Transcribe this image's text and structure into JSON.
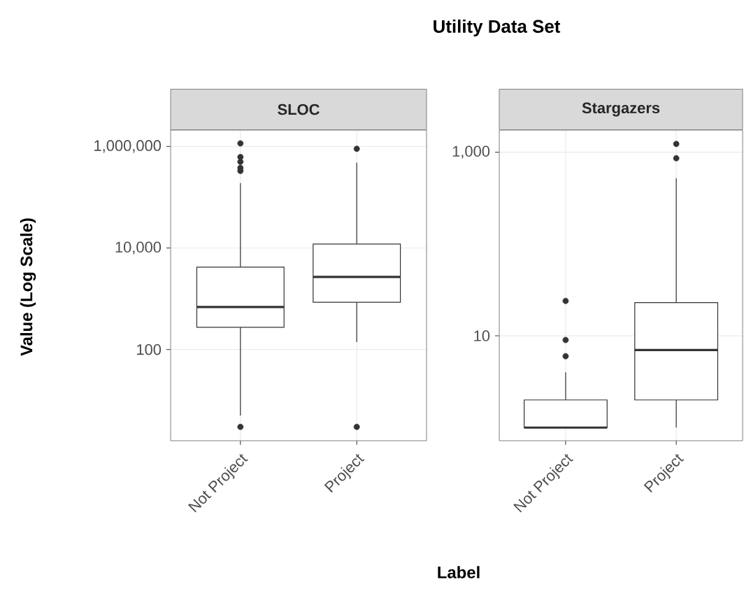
{
  "chart_data": [
    {
      "type": "box",
      "title": "SLOC",
      "ylabel": "Value (Log Scale)",
      "xlabel": "Label",
      "annotations": [
        "Utility Data Set"
      ],
      "categories": [
        "Not Project",
        "Project"
      ],
      "log": "y",
      "grid": true,
      "ylim": [
        1.6,
        2100000
      ],
      "yticks": [
        100,
        {
          "value": 10000,
          "label": "10,000"
        },
        {
          "value": 1000000,
          "label": "1,000,000"
        }
      ],
      "boxes": [
        {
          "low": 5,
          "q1": 275,
          "median": 690,
          "q3": 4200,
          "high": 190000,
          "outliers": [
            3,
            330000,
            380000,
            500000,
            620000,
            1150000
          ]
        },
        {
          "low": 140,
          "q1": 850,
          "median": 2700,
          "q3": 12000,
          "high": 480000,
          "outliers": [
            3,
            900000
          ]
        }
      ]
    },
    {
      "type": "box",
      "title": "Stargazers",
      "categories": [
        "Not Project",
        "Project"
      ],
      "log": "y",
      "grid": true,
      "ylim": [
        0.72,
        1740
      ],
      "yticks": [
        10,
        {
          "value": 1000,
          "label": "1,000"
        }
      ],
      "boxes": [
        {
          "low": 1,
          "q1": 1,
          "median": 1,
          "q3": 2,
          "high": 4,
          "outliers": [
            6,
            9,
            24
          ]
        },
        {
          "low": 1,
          "q1": 2,
          "median": 7,
          "q3": 23,
          "high": 520,
          "outliers": [
            860,
            1230
          ]
        }
      ]
    }
  ]
}
